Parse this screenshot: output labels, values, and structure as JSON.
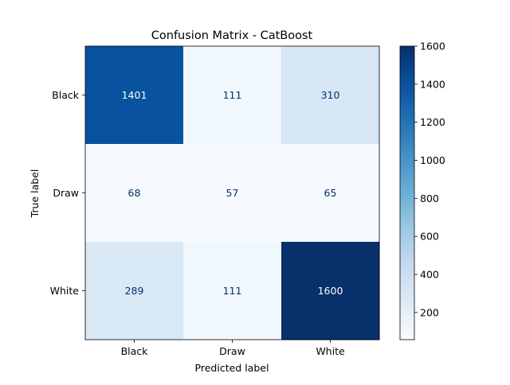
{
  "chart_data": {
    "type": "heatmap",
    "title": "Confusion Matrix - CatBoost",
    "xlabel": "Predicted label",
    "ylabel": "True label",
    "x_categories": [
      "Black",
      "Draw",
      "White"
    ],
    "y_categories": [
      "Black",
      "Draw",
      "White"
    ],
    "matrix": [
      [
        1401,
        111,
        310
      ],
      [
        68,
        57,
        65
      ],
      [
        289,
        111,
        1600
      ]
    ],
    "colormap": "Blues",
    "value_range": [
      57,
      1600
    ],
    "colorbar_ticks": [
      200,
      400,
      600,
      800,
      1000,
      1200,
      1400,
      1600
    ],
    "text_color_light": "#ffffff",
    "text_color_dark": "#08306b"
  }
}
